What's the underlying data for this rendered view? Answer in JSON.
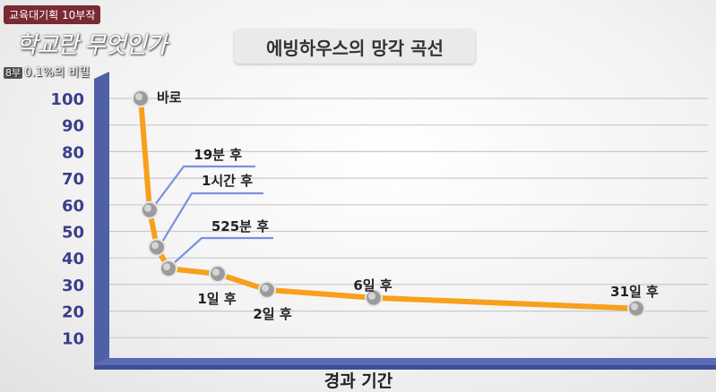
{
  "overlay": {
    "series_badge": "교육대기획 10부작",
    "program_logo": "학교란 무엇인가",
    "episode_num": "8부",
    "episode_title": "0.1%의 비밀"
  },
  "chart_data": {
    "type": "line",
    "title": "에빙하우스의 망각 곡선",
    "xlabel": "경과 기간",
    "ylabel": "",
    "ylim": [
      0,
      100
    ],
    "yticks": [
      10,
      20,
      30,
      40,
      50,
      60,
      70,
      80,
      90,
      100
    ],
    "grid": true,
    "series": [
      {
        "color": "#f7a01c",
        "points": [
          {
            "label": "바로",
            "y": 100
          },
          {
            "label": "19분 후",
            "y": 58
          },
          {
            "label": "1시간 후",
            "y": 44
          },
          {
            "label": "525분 후",
            "y": 36
          },
          {
            "label": "1일 후",
            "y": 34
          },
          {
            "label": "2일 후",
            "y": 28
          },
          {
            "label": "6일 후",
            "y": 25
          },
          {
            "label": "31일 후",
            "y": 21
          }
        ]
      }
    ]
  }
}
